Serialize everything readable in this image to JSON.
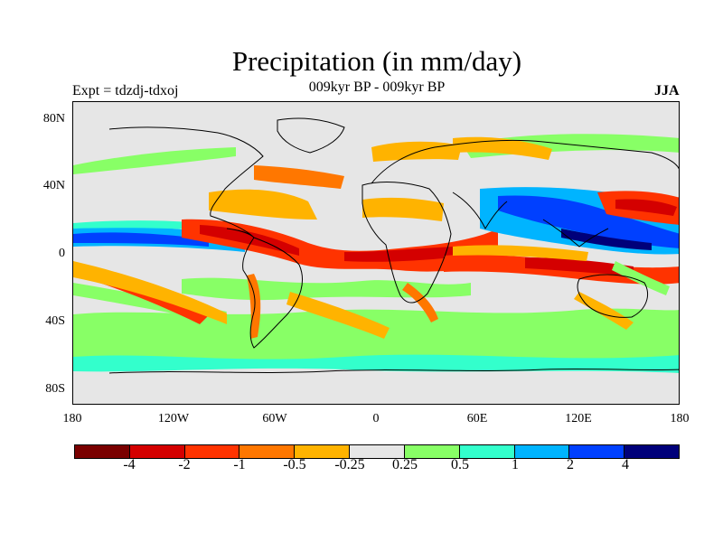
{
  "header": {
    "title": "Precipitation (in mm/day)",
    "experiment": "Expt = tdzdj-tdxoj",
    "period": "009kyr BP - 009kyr BP",
    "season": "JJA"
  },
  "map": {
    "y_axis_labels": [
      "80N",
      "40N",
      "0",
      "40S",
      "80S"
    ],
    "x_axis_labels": [
      "180",
      "120W",
      "60W",
      "0",
      "60E",
      "120E",
      "180"
    ]
  },
  "colorbar": {
    "colors": [
      "#7a0000",
      "#d40000",
      "#ff3300",
      "#ff7700",
      "#ffb300",
      "#e6e6e6",
      "#88ff66",
      "#33ffcc",
      "#00b4ff",
      "#0040ff",
      "#00007a"
    ],
    "labels": [
      "-4",
      "-2",
      "-1",
      "-0.5",
      "-0.25",
      "0.25",
      "0.5",
      "1",
      "2",
      "4"
    ]
  }
}
